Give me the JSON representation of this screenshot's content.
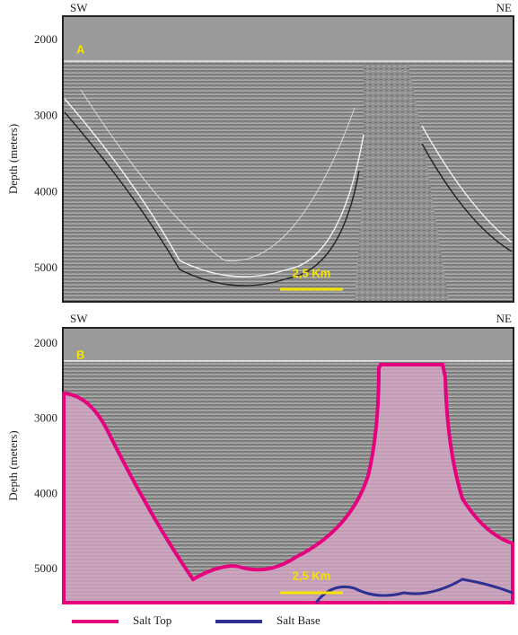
{
  "panels": [
    {
      "letter": "A",
      "left_label": "SW",
      "right_label": "NE",
      "y_axis_label": "Depth (meters)",
      "yticks": [
        2000,
        3000,
        4000,
        5000
      ],
      "scale_bar": "2,5 Km"
    },
    {
      "letter": "B",
      "left_label": "SW",
      "right_label": "NE",
      "y_axis_label": "Depth (meters)",
      "yticks": [
        2000,
        3000,
        4000,
        5000
      ],
      "scale_bar": "2,5 Km"
    }
  ],
  "legend": [
    {
      "name": "Salt Top",
      "color": "#e6007e"
    },
    {
      "name": "Salt Base",
      "color": "#2e3192"
    }
  ]
}
